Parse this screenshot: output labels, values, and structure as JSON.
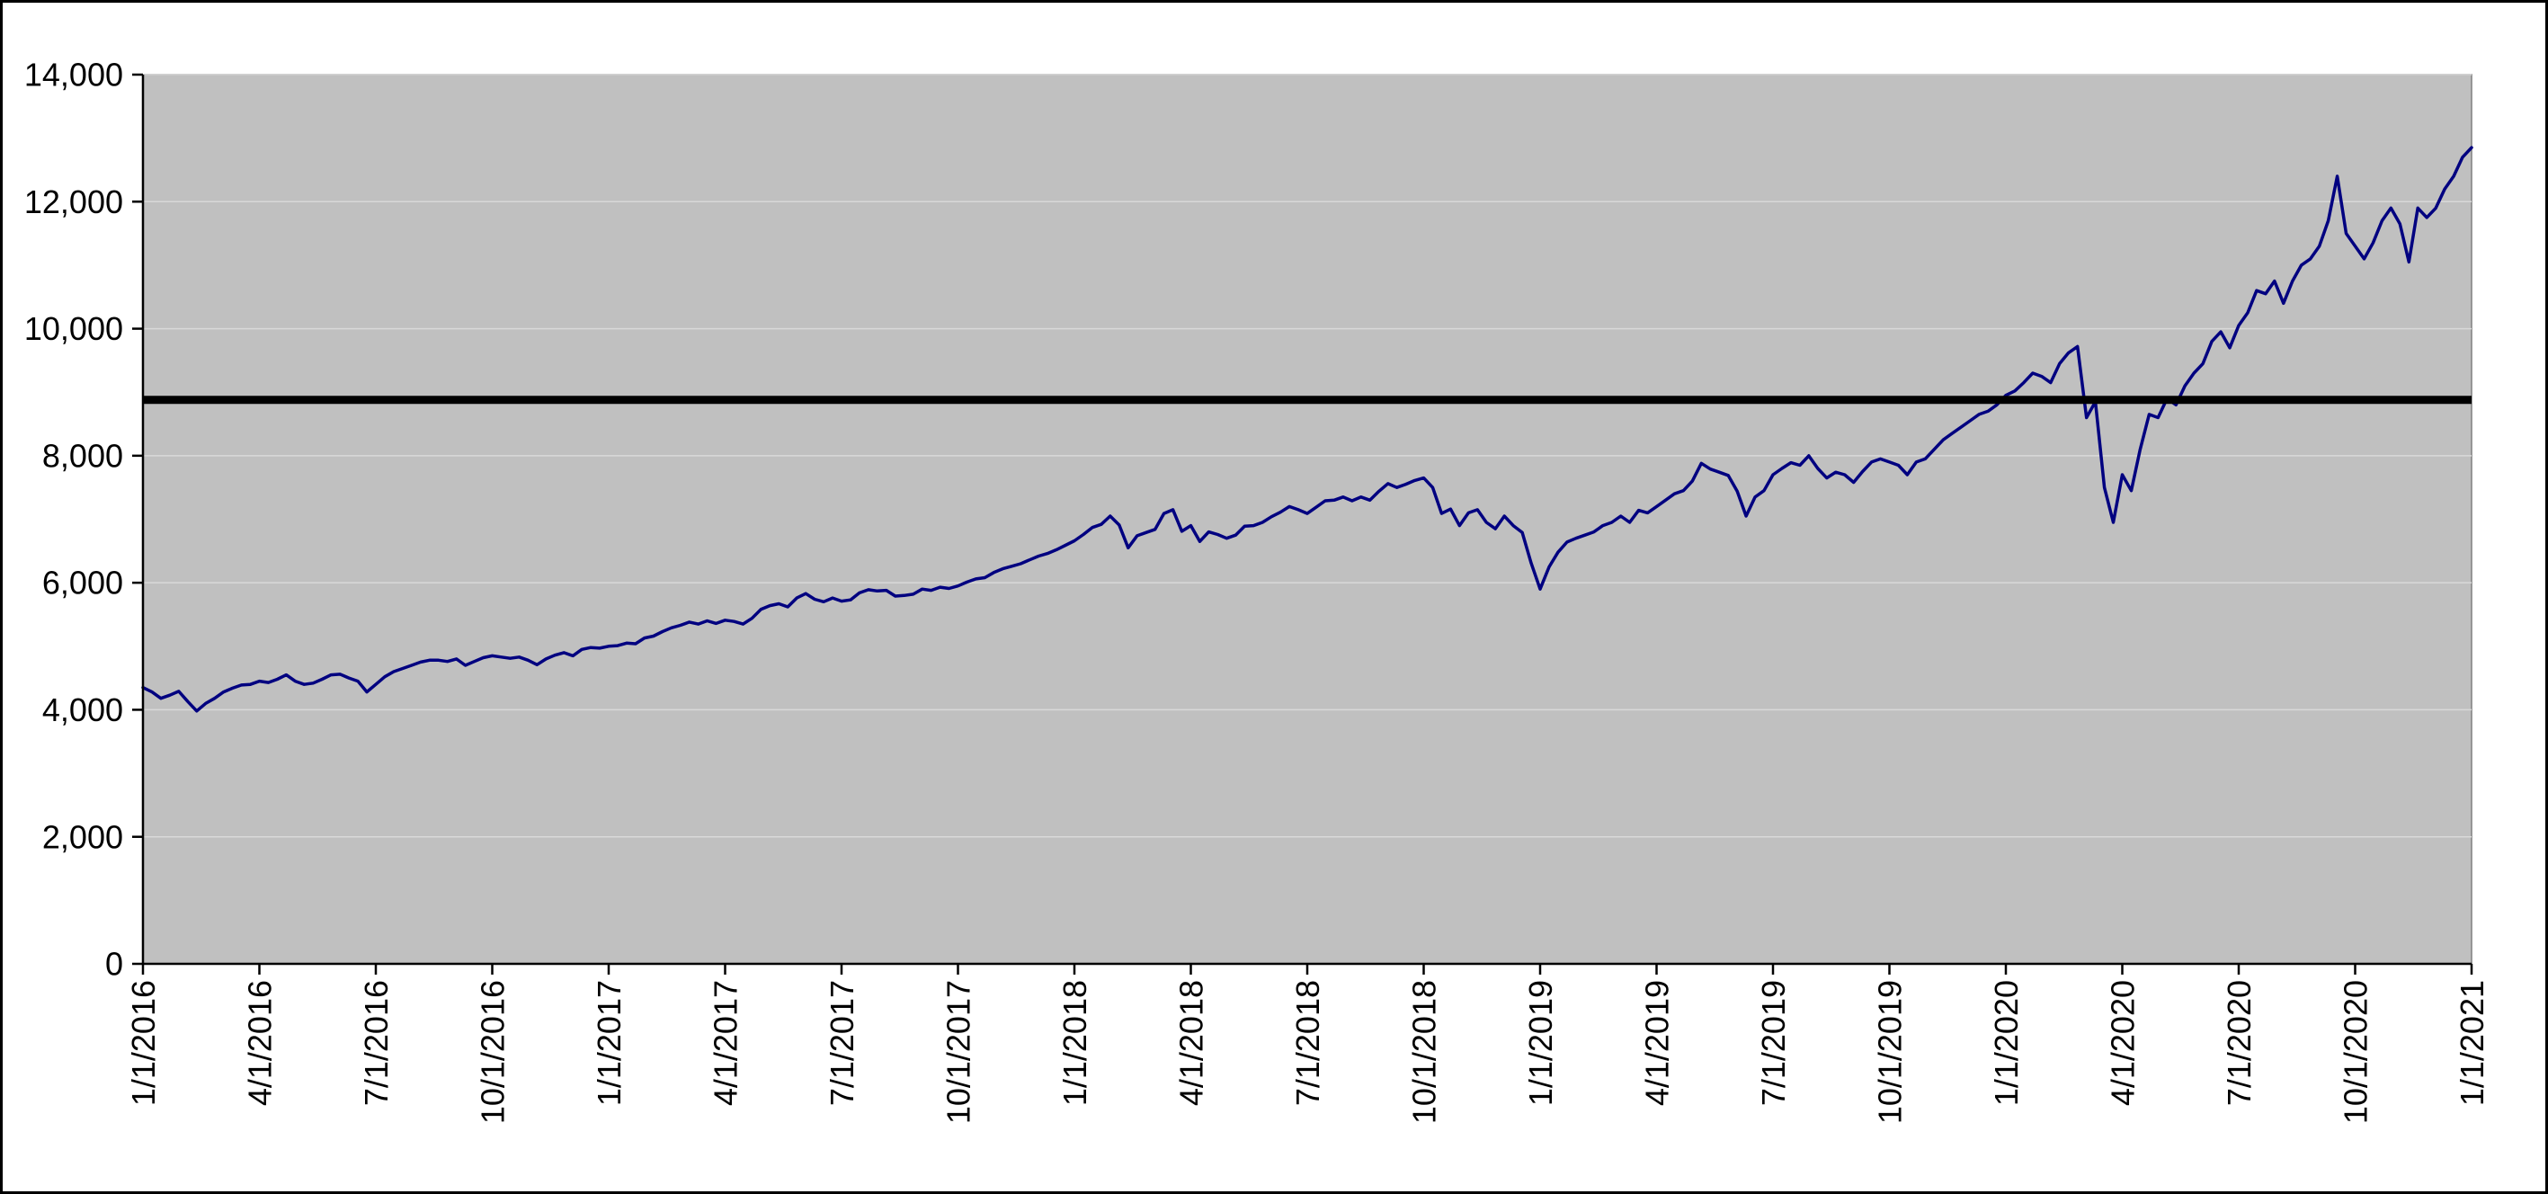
{
  "chart_data": {
    "type": "line",
    "background": "#ffffff",
    "plot_background": "#c0c0c0",
    "gridline_color": "#d9d9d9",
    "border_color": "#000000",
    "legend": "none",
    "x_axis": {
      "start_year": 2016,
      "end_year": 2021,
      "tick_labels": [
        "1/1/2016",
        "4/1/2016",
        "7/1/2016",
        "10/1/2016",
        "1/1/2017",
        "4/1/2017",
        "7/1/2017",
        "10/1/2017",
        "1/1/2018",
        "4/1/2018",
        "7/1/2018",
        "10/1/2018",
        "1/1/2019",
        "4/1/2019",
        "7/1/2019",
        "10/1/2019",
        "1/1/2020",
        "4/1/2020",
        "7/1/2020",
        "10/1/2020",
        "1/1/2021"
      ]
    },
    "y_axis": {
      "min": 0,
      "max": 14000,
      "step": 2000,
      "tick_labels": [
        "0",
        "2,000",
        "4,000",
        "6,000",
        "8,000",
        "10,000",
        "12,000",
        "14,000"
      ]
    },
    "reference_line": {
      "value": 8880,
      "color": "#000000"
    },
    "series": [
      {
        "color": "#000080",
        "cadence": "weekly",
        "weekly_values": [
          4350,
          4280,
          4180,
          4230,
          4290,
          4130,
          3980,
          4100,
          4180,
          4280,
          4340,
          4390,
          4400,
          4450,
          4430,
          4480,
          4550,
          4450,
          4400,
          4420,
          4480,
          4550,
          4560,
          4500,
          4450,
          4280,
          4400,
          4520,
          4600,
          4650,
          4700,
          4750,
          4780,
          4780,
          4760,
          4800,
          4700,
          4760,
          4820,
          4850,
          4830,
          4810,
          4830,
          4780,
          4710,
          4800,
          4860,
          4900,
          4850,
          4950,
          4980,
          4970,
          5000,
          5010,
          5050,
          5040,
          5130,
          5160,
          5230,
          5290,
          5330,
          5380,
          5350,
          5400,
          5360,
          5410,
          5390,
          5350,
          5440,
          5580,
          5640,
          5670,
          5620,
          5760,
          5830,
          5740,
          5700,
          5760,
          5710,
          5730,
          5840,
          5890,
          5870,
          5880,
          5790,
          5800,
          5820,
          5900,
          5880,
          5930,
          5910,
          5950,
          6010,
          6060,
          6080,
          6160,
          6220,
          6260,
          6300,
          6360,
          6420,
          6460,
          6520,
          6590,
          6660,
          6760,
          6870,
          6920,
          7050,
          6910,
          6550,
          6740,
          6790,
          6840,
          7090,
          7150,
          6810,
          6900,
          6650,
          6800,
          6760,
          6700,
          6750,
          6890,
          6900,
          6950,
          7040,
          7110,
          7200,
          7150,
          7090,
          7190,
          7290,
          7300,
          7350,
          7290,
          7350,
          7300,
          7440,
          7560,
          7500,
          7550,
          7610,
          7650,
          7500,
          7090,
          7160,
          6900,
          7100,
          7150,
          6950,
          6850,
          7050,
          6900,
          6790,
          6310,
          5900,
          6250,
          6480,
          6640,
          6700,
          6750,
          6800,
          6900,
          6950,
          7050,
          6950,
          7140,
          7100,
          7200,
          7300,
          7400,
          7450,
          7600,
          7880,
          7790,
          7740,
          7690,
          7440,
          7050,
          7350,
          7450,
          7700,
          7800,
          7890,
          7850,
          8000,
          7800,
          7650,
          7740,
          7700,
          7580,
          7750,
          7900,
          7950,
          7900,
          7850,
          7700,
          7900,
          7950,
          8100,
          8250,
          8350,
          8450,
          8550,
          8650,
          8700,
          8800,
          8950,
          9020,
          9150,
          9300,
          9250,
          9150,
          9450,
          9620,
          9720,
          8600,
          8850,
          7500,
          6950,
          7700,
          7450,
          8100,
          8650,
          8600,
          8900,
          8800,
          9100,
          9300,
          9450,
          9800,
          9950,
          9700,
          10050,
          10250,
          10600,
          10550,
          10750,
          10400,
          10750,
          11000,
          11100,
          11300,
          11700,
          12400,
          11500,
          11300,
          11100,
          11350,
          11700,
          11900,
          11650,
          11050,
          11900,
          11750,
          11900,
          12200,
          12400,
          12700,
          12850
        ]
      }
    ]
  }
}
